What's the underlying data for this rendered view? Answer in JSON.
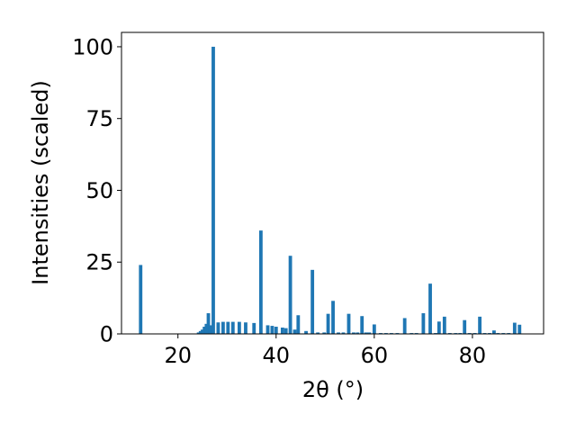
{
  "chart_data": {
    "type": "bar",
    "xlabel": "2θ (°)",
    "ylabel": "Intensities (scaled)",
    "xlim": [
      8.5,
      94.5
    ],
    "ylim": [
      0,
      105
    ],
    "xticks": [
      20,
      40,
      60,
      80
    ],
    "yticks": [
      0,
      25,
      50,
      75,
      100
    ],
    "bar_color": "#1f77b4",
    "grid": false,
    "bar_width": 0.7,
    "series": [
      {
        "x": [
          12.4,
          24.2,
          24.6,
          25.0,
          25.4,
          25.8,
          26.2,
          26.6,
          27.2,
          28.2,
          29.2,
          30.2,
          31.2,
          32.5,
          33.8,
          35.5,
          36.9,
          38.3,
          39.2,
          40.0,
          41.3,
          42.0,
          42.9,
          43.8,
          44.5,
          46.1,
          47.4,
          48.5,
          49.8,
          50.6,
          51.6,
          52.7,
          53.7,
          54.8,
          55.8,
          56.6,
          57.5,
          58.3,
          59.0,
          60.0,
          61.3,
          62.4,
          63.5,
          64.7,
          66.2,
          67.6,
          68.6,
          70.0,
          71.4,
          72.5,
          73.2,
          74.3,
          75.4,
          76.6,
          77.5,
          78.4,
          79.4,
          80.5,
          81.5,
          82.5,
          83.5,
          84.4,
          85.2,
          86.3,
          87.4,
          88.6,
          89.6
        ],
        "values": [
          24,
          0.5,
          1.0,
          1.5,
          2.5,
          3.5,
          7.2,
          3.0,
          100,
          4.0,
          4.2,
          4.2,
          4.2,
          4.2,
          4.0,
          3.8,
          36,
          3.0,
          2.8,
          2.5,
          2.2,
          2.0,
          27.2,
          1.5,
          6.5,
          1.0,
          22.3,
          0.5,
          0.5,
          7.0,
          11.5,
          0.5,
          0.5,
          7.0,
          0.5,
          0.5,
          6.2,
          0.5,
          0.5,
          3.3,
          0.3,
          0.3,
          0.3,
          0.3,
          5.5,
          0.3,
          0.3,
          7.2,
          17.5,
          0.3,
          4.3,
          6.0,
          0.3,
          0.3,
          0.3,
          4.8,
          0.3,
          0.3,
          6.0,
          0.3,
          0.3,
          1.2,
          0.3,
          0.3,
          0.3,
          3.9,
          3.2
        ]
      }
    ]
  }
}
